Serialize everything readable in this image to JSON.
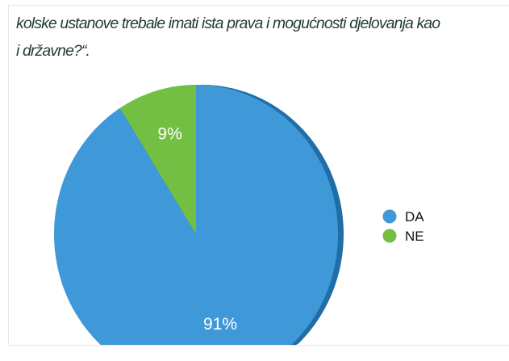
{
  "caption": {
    "line1": "kolske ustanove trebale imati ista prava i mogućnosti djelovanja kao",
    "line2": "i državne?“."
  },
  "chart_data": {
    "type": "pie",
    "categories": [
      "DA",
      "NE"
    ],
    "values": [
      91,
      9
    ],
    "labels": [
      "91%",
      "9%"
    ],
    "colors": [
      "#3f98d8",
      "#72bf44"
    ],
    "legend": {
      "position": "right",
      "entries": [
        "DA",
        "NE"
      ]
    },
    "style": "3d"
  }
}
